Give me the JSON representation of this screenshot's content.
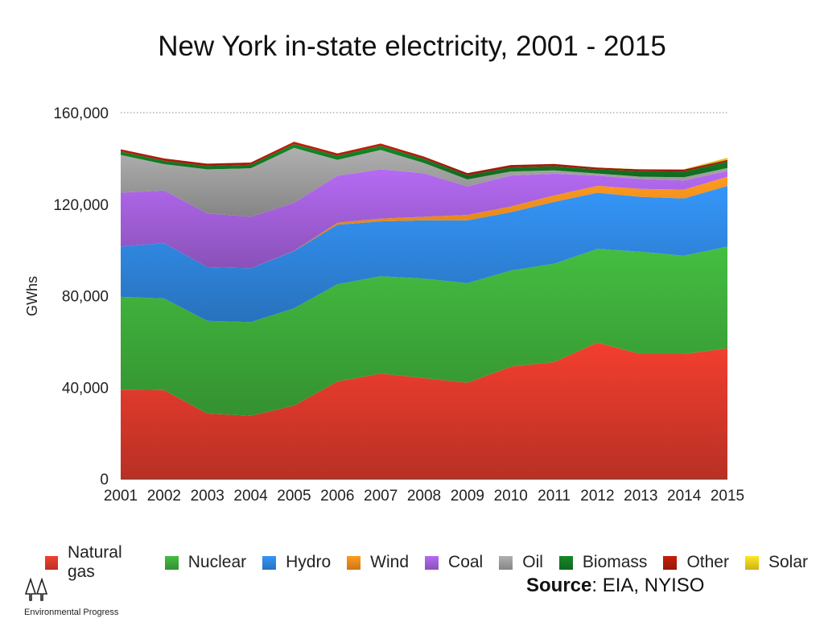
{
  "chart_data": {
    "type": "area",
    "stacked": true,
    "title": "New York in-state electricity, 2001 - 2015",
    "ylabel": "GWhs",
    "xlabel": "",
    "x": [
      2001,
      2002,
      2003,
      2004,
      2005,
      2006,
      2007,
      2008,
      2009,
      2010,
      2011,
      2012,
      2013,
      2014,
      2015
    ],
    "ylim": [
      0,
      160000
    ],
    "yticks": [
      0,
      40000,
      80000,
      120000,
      160000
    ],
    "ytick_labels": [
      "0",
      "40,000",
      "80,000",
      "120,000",
      "160,000"
    ],
    "xtick_labels": [
      "2001",
      "2002",
      "2003",
      "2004",
      "2005",
      "2006",
      "2007",
      "2008",
      "2009",
      "2010",
      "2011",
      "2012",
      "2013",
      "2014",
      "2015"
    ],
    "grid": "top line only (dotted at 160,000)",
    "legend_position": "bottom",
    "series": [
      {
        "name": "Natural gas",
        "color": "#d9382a",
        "values": [
          39000,
          38800,
          28500,
          27500,
          32000,
          42500,
          46000,
          44000,
          42000,
          49000,
          51000,
          59500,
          54500,
          54500,
          57000
        ]
      },
      {
        "name": "Nuclear",
        "color": "#3daa3a",
        "values": [
          40500,
          40000,
          40500,
          41000,
          42500,
          42500,
          42500,
          43500,
          43500,
          42000,
          43000,
          41000,
          44700,
          43000,
          44500
        ]
      },
      {
        "name": "Hydro",
        "color": "#2f86de",
        "values": [
          22000,
          24200,
          23500,
          23500,
          25000,
          26000,
          24000,
          25500,
          27500,
          25500,
          27000,
          24500,
          24000,
          25000,
          26500
        ]
      },
      {
        "name": "Wind",
        "color": "#f08a1c",
        "values": [
          0,
          0,
          0,
          0,
          100,
          900,
          1200,
          1500,
          2300,
          2500,
          2800,
          3000,
          3500,
          3900,
          4000
        ]
      },
      {
        "name": "Coal",
        "color": "#a25fd9",
        "values": [
          23500,
          23000,
          23500,
          22500,
          21000,
          20500,
          21500,
          19000,
          12500,
          13500,
          9500,
          4500,
          4300,
          4000,
          2500
        ]
      },
      {
        "name": "Oil",
        "color": "#9d9d9d",
        "values": [
          16500,
          11500,
          19200,
          21200,
          24000,
          7000,
          8500,
          4500,
          3000,
          1800,
          1500,
          900,
          1000,
          1400,
          1300
        ]
      },
      {
        "name": "Biomass",
        "color": "#137a24",
        "values": [
          1500,
          1500,
          1500,
          1500,
          1700,
          1800,
          1800,
          1800,
          1800,
          1800,
          1800,
          1800,
          2400,
          2500,
          2800
        ]
      },
      {
        "name": "Other",
        "color": "#b01c0a",
        "values": [
          1000,
          1000,
          1000,
          1000,
          1000,
          1000,
          1000,
          1000,
          1000,
          1000,
          1000,
          800,
          800,
          800,
          800
        ]
      },
      {
        "name": "Solar",
        "color": "#f2cf1d",
        "values": [
          0,
          0,
          0,
          0,
          0,
          0,
          0,
          0,
          0,
          0,
          0,
          50,
          100,
          200,
          900
        ]
      }
    ]
  },
  "source": {
    "label": "Source",
    "text": ": EIA, NYISO"
  },
  "logo": {
    "text": "Environmental Progress",
    "icon": "trees-icon"
  }
}
